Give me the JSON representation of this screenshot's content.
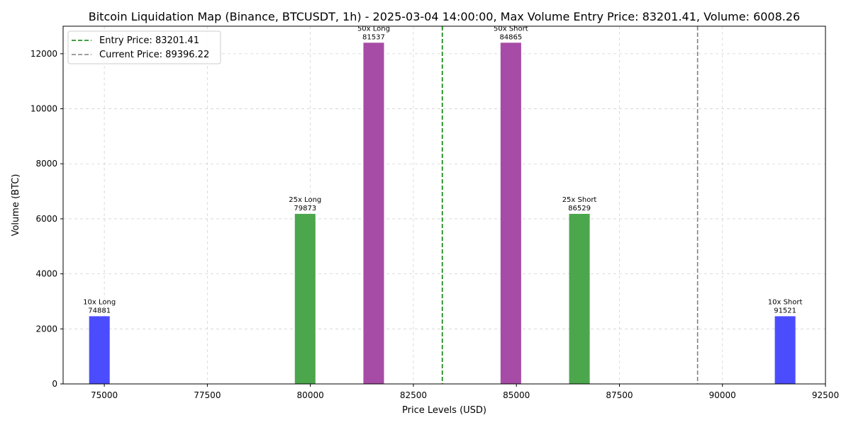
{
  "chart_data": {
    "type": "bar",
    "title": "Bitcoin Liquidation Map (Binance, BTCUSDT, 1h) - 2025-03-04 14:00:00, Max Volume Entry Price: 83201.41, Volume: 6008.26",
    "xlabel": "Price Levels (USD)",
    "ylabel": "Volume (BTC)",
    "xlim": [
      74000,
      92500
    ],
    "ylim": [
      0,
      13000
    ],
    "bar_width": 500,
    "x_ticks": [
      75000,
      77500,
      80000,
      82500,
      85000,
      87500,
      90000,
      92500
    ],
    "y_ticks": [
      0,
      2000,
      4000,
      6000,
      8000,
      10000,
      12000
    ],
    "grid": true,
    "legend_position": "top-left",
    "bars": [
      {
        "label": "10x Long",
        "price_text": "74881",
        "x": 74881,
        "value": 2460,
        "color": "#4c4cff"
      },
      {
        "label": "25x Long",
        "price_text": "79873",
        "x": 79873,
        "value": 6180,
        "color": "#4ca64c"
      },
      {
        "label": "50x Long",
        "price_text": "81537",
        "x": 81537,
        "value": 12400,
        "color": "#a64ca6"
      },
      {
        "label": "50x Short",
        "price_text": "84865",
        "x": 84865,
        "value": 12400,
        "color": "#a64ca6"
      },
      {
        "label": "25x Short",
        "price_text": "86529",
        "x": 86529,
        "value": 6180,
        "color": "#4ca64c"
      },
      {
        "label": "10x Short",
        "price_text": "91521",
        "x": 91521,
        "value": 2460,
        "color": "#4c4cff"
      }
    ],
    "reference_lines": [
      {
        "name": "entry-price-line",
        "label": "Entry Price: 83201.41",
        "x": 83201.41,
        "color": "#008000"
      },
      {
        "name": "current-price-line",
        "label": "Current Price: 89396.22",
        "x": 89396.22,
        "color": "#808080"
      }
    ]
  }
}
